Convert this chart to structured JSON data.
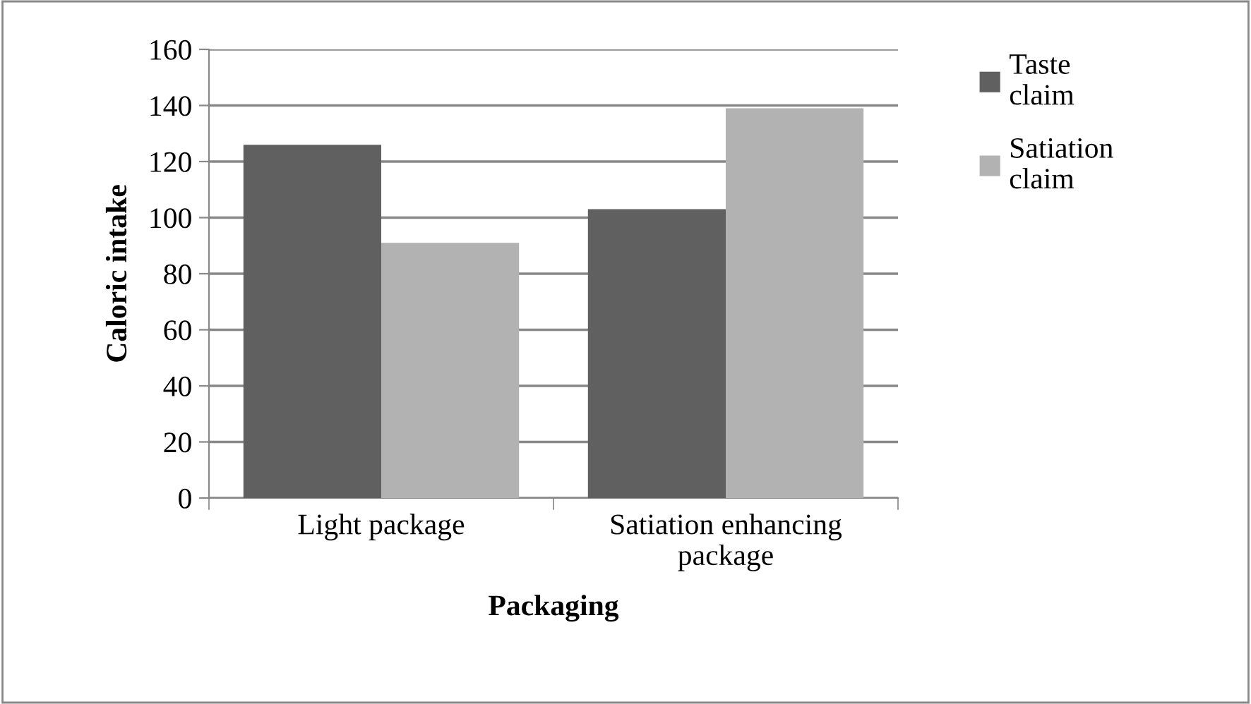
{
  "chart_data": {
    "type": "bar",
    "xlabel": "Packaging",
    "ylabel": "Caloric intake",
    "categories": [
      "Light package",
      "Satiation enhancing\npackage"
    ],
    "series": [
      {
        "name": "Taste\nclaim",
        "color": "#606060",
        "values": [
          126,
          103
        ]
      },
      {
        "name": "Satiation\nclaim",
        "color": "#b2b2b2",
        "values": [
          91,
          139
        ]
      }
    ],
    "ylim": [
      0,
      160
    ],
    "yticks": [
      0,
      20,
      40,
      60,
      80,
      100,
      120,
      140,
      160
    ],
    "grid": "y",
    "legend": "top right"
  }
}
